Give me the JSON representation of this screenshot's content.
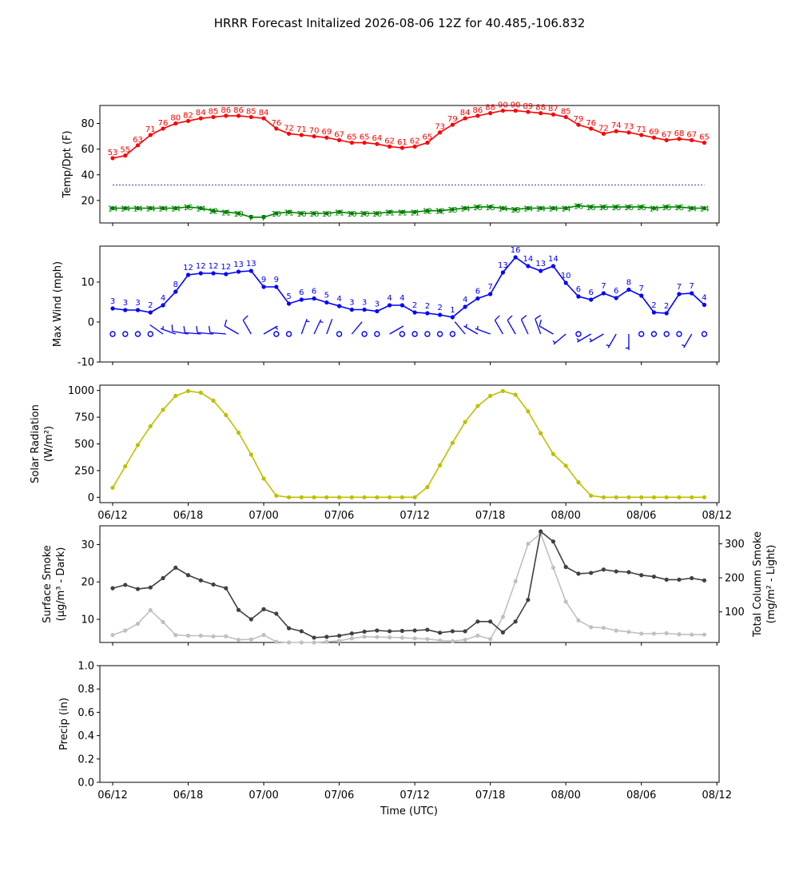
{
  "title": "HRRR Forecast Initalized 2026-08-06 12Z for 40.485,-106.832",
  "time_ticks": [
    "06/12",
    "06/18",
    "07/00",
    "07/06",
    "07/12",
    "07/18",
    "08/00",
    "08/06",
    "08/12"
  ],
  "time_label": "Time (UTC)",
  "colors": {
    "temp": "#ff0000",
    "dewpoint": "#008000",
    "freezing_line": "#000080",
    "wind": "#0000ff",
    "solar": "#bfbf00",
    "smoke_surface": "#404040",
    "smoke_column": "#c0c0c0"
  },
  "chart_data": [
    {
      "type": "line",
      "ylabel": "Temp/Dpt (F)",
      "xlim": [
        0,
        48
      ],
      "ylim": [
        2.5,
        94
      ],
      "yticks": [
        20,
        40,
        60,
        80
      ],
      "reference_line": 32,
      "series": [
        {
          "values": [
            53,
            55,
            63,
            71,
            76,
            80,
            82,
            84,
            85,
            86,
            86,
            85,
            84,
            76,
            72,
            71,
            70,
            69,
            67,
            65,
            65,
            64,
            62,
            61,
            62,
            65,
            73,
            79,
            84,
            86,
            88,
            90,
            90,
            89,
            88,
            87,
            85,
            79,
            76,
            72,
            74,
            73,
            71,
            69,
            67,
            68,
            67,
            65
          ]
        },
        {
          "values": [
            14,
            14,
            14,
            14,
            14,
            14,
            15,
            14,
            12,
            11,
            10,
            7,
            7,
            10,
            11,
            10,
            10,
            10,
            11,
            10,
            10,
            10,
            11,
            11,
            11,
            12,
            12,
            13,
            14,
            15,
            15,
            14,
            13,
            14,
            14,
            14,
            14,
            16,
            15,
            15,
            15,
            15,
            15,
            14,
            15,
            15,
            14,
            14
          ]
        }
      ]
    },
    {
      "type": "line",
      "ylabel": "Max Wind (mph)",
      "xlim": [
        0,
        48
      ],
      "ylim": [
        -10,
        19
      ],
      "yticks": [
        -10,
        0,
        10
      ],
      "series": [
        {
          "values": [
            3.4,
            3,
            3,
            2.4,
            4.2,
            7.6,
            11.8,
            12.2,
            12.2,
            12,
            12.6,
            12.8,
            8.8,
            8.8,
            4.6,
            5.6,
            5.9,
            4.9,
            4,
            3.1,
            3.1,
            2.7,
            4.2,
            4.2,
            2.4,
            2.2,
            1.8,
            1.2,
            3.8,
            5.9,
            7,
            12.4,
            16.2,
            14,
            12.8,
            14,
            9.8,
            6.4,
            5.6,
            7.2,
            6,
            8.1,
            6.6,
            2.4,
            2.2,
            7,
            7.2,
            4.3
          ]
        }
      ],
      "point_labels": [
        3,
        3,
        3,
        2,
        4,
        8,
        12,
        12,
        12,
        12,
        13,
        13,
        9,
        9,
        5,
        6,
        6,
        5,
        4,
        3,
        3,
        3,
        4,
        4,
        2,
        2,
        2,
        1,
        4,
        6,
        7,
        13,
        16,
        14,
        13,
        14,
        10,
        6,
        6,
        7,
        6,
        8,
        7,
        2,
        2,
        7,
        7,
        4
      ],
      "wind_dir_deg": [
        null,
        null,
        null,
        null,
        305,
        290,
        280,
        275,
        275,
        275,
        300,
        330,
        60,
        null,
        null,
        20,
        25,
        20,
        null,
        40,
        null,
        null,
        60,
        null,
        null,
        null,
        null,
        null,
        320,
        300,
        290,
        330,
        330,
        335,
        340,
        300,
        230,
        null,
        240,
        240,
        210,
        180,
        null,
        null,
        null,
        null,
        210,
        null
      ],
      "wind_speed_knots": [
        3,
        3,
        3,
        2,
        4,
        7,
        10,
        11,
        11,
        10,
        11,
        11,
        8,
        8,
        4,
        5,
        5,
        4,
        3,
        3,
        3,
        2,
        4,
        4,
        2,
        2,
        2,
        1,
        3,
        5,
        6,
        11,
        14,
        12,
        11,
        12,
        9,
        6,
        5,
        6,
        5,
        7,
        6,
        2,
        2,
        6,
        6,
        4
      ]
    },
    {
      "type": "line",
      "ylabel": "Solar Radiation",
      "ylabel2": "(W/m²)",
      "xlim": [
        0,
        48
      ],
      "ylim": [
        -50,
        1050
      ],
      "yticks": [
        0,
        250,
        500,
        750,
        1000
      ],
      "series": [
        {
          "values": [
            90,
            290,
            490,
            665,
            820,
            950,
            995,
            980,
            905,
            770,
            605,
            400,
            175,
            15,
            0,
            0,
            0,
            0,
            0,
            0,
            0,
            0,
            0,
            0,
            0,
            95,
            300,
            510,
            705,
            855,
            950,
            995,
            960,
            805,
            600,
            405,
            295,
            140,
            15,
            0,
            0,
            0,
            0,
            0,
            0,
            0,
            0,
            0
          ]
        }
      ]
    },
    {
      "type": "line",
      "ylabel": "Surface Smoke",
      "ylabel2": "(μg/m³ - Dark)",
      "ylabel_right": "Total Column Smoke",
      "ylabel_right2": "(mg/m² - Light)",
      "xlim": [
        0,
        48
      ],
      "ylim": [
        3.8,
        35.0
      ],
      "yticks": [
        10,
        20,
        30
      ],
      "ylim_right": [
        10,
        353
      ],
      "yticks_right": [
        100,
        200,
        300
      ],
      "series": [
        {
          "name": "Surface Smoke",
          "values": [
            18.3,
            19.2,
            18.1,
            18.5,
            21,
            23.8,
            21.8,
            20.4,
            19.3,
            18.3,
            12.5,
            10,
            12.7,
            11.5,
            7.6,
            6.8,
            5.1,
            5.3,
            5.6,
            6.2,
            6.7,
            7,
            6.8,
            6.9,
            7,
            7.2,
            6.4,
            6.8,
            6.8,
            9.4,
            9.4,
            6.5,
            9.4,
            15.2,
            33.5,
            30.8,
            24,
            22.2,
            22.4,
            23.3,
            22.8,
            22.6,
            21.8,
            21.4,
            20.6,
            20.6,
            21,
            20.4
          ]
        },
        {
          "name": "Total Column Smoke",
          "values": [
            32,
            45,
            65,
            105,
            70,
            32,
            30,
            30,
            28,
            28,
            18,
            19,
            32,
            12,
            10,
            10,
            10,
            12,
            15,
            22,
            27,
            26,
            25,
            24,
            22,
            20,
            16,
            14,
            18,
            30,
            20,
            85,
            190,
            300,
            330,
            230,
            130,
            75,
            55,
            53,
            45,
            41,
            36,
            36,
            37,
            34,
            33,
            33
          ]
        }
      ]
    },
    {
      "type": "line",
      "ylabel": "Precip (in)",
      "xlim": [
        0,
        48
      ],
      "ylim": [
        0,
        1
      ],
      "yticks": [
        "0.0",
        "0.2",
        "0.4",
        "0.6",
        "0.8",
        "1.0"
      ],
      "series": []
    }
  ]
}
